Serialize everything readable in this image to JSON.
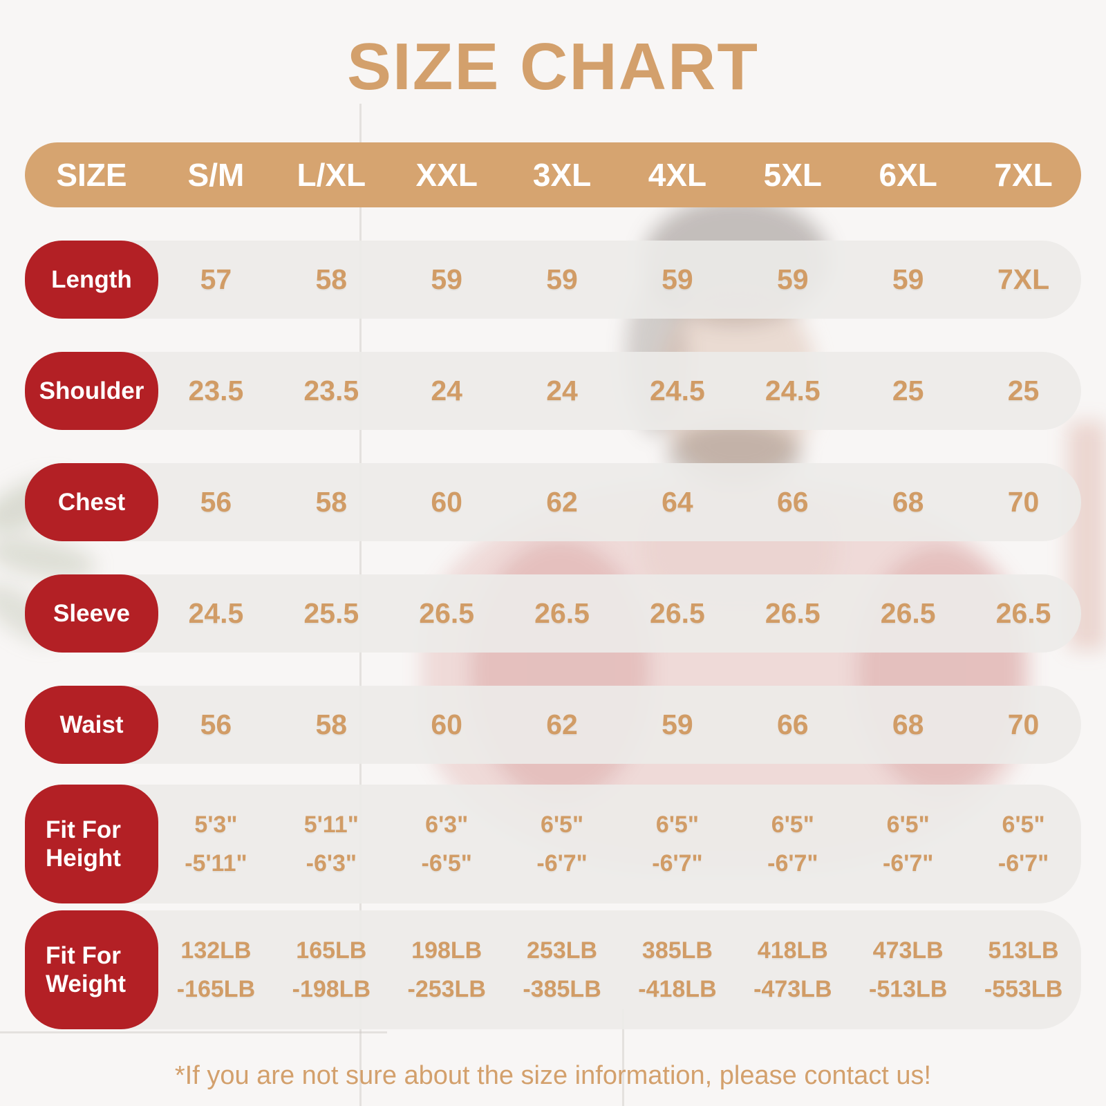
{
  "chart_data": {
    "type": "table",
    "title": "SIZE CHART",
    "columns": [
      "SIZE",
      "S/M",
      "L/XL",
      "XXL",
      "3XL",
      "4XL",
      "5XL",
      "6XL",
      "7XL"
    ],
    "rows": [
      {
        "label": "Length",
        "values": [
          "57",
          "58",
          "59",
          "59",
          "59",
          "59",
          "59",
          "7XL"
        ]
      },
      {
        "label": "Shoulder",
        "values": [
          "23.5",
          "23.5",
          "24",
          "24",
          "24.5",
          "24.5",
          "25",
          "25"
        ]
      },
      {
        "label": "Chest",
        "values": [
          "56",
          "58",
          "60",
          "62",
          "64",
          "66",
          "68",
          "70"
        ]
      },
      {
        "label": "Sleeve",
        "values": [
          "24.5",
          "25.5",
          "26.5",
          "26.5",
          "26.5",
          "26.5",
          "26.5",
          "26.5"
        ]
      },
      {
        "label": "Waist",
        "values": [
          "56",
          "58",
          "60",
          "62",
          "59",
          "66",
          "68",
          "70"
        ]
      },
      {
        "label": "Fit For Height",
        "values": [
          [
            "5'3\"",
            "-5'11\""
          ],
          [
            "5'11\"",
            "-6'3\""
          ],
          [
            "6'3\"",
            "-6'5\""
          ],
          [
            "6'5\"",
            "-6'7\""
          ],
          [
            "6'5\"",
            "-6'7\""
          ],
          [
            "6'5\"",
            "-6'7\""
          ],
          [
            "6'5\"",
            "-6'7\""
          ],
          [
            "6'5\"",
            "-6'7\""
          ]
        ]
      },
      {
        "label": "Fit For Weight",
        "values": [
          [
            "132LB",
            "-165LB"
          ],
          [
            "165LB",
            "-198LB"
          ],
          [
            "198LB",
            "-253LB"
          ],
          [
            "253LB",
            "-385LB"
          ],
          [
            "385LB",
            "-418LB"
          ],
          [
            "418LB",
            "-473LB"
          ],
          [
            "473LB",
            "-513LB"
          ],
          [
            "513LB",
            "-553LB"
          ]
        ]
      }
    ],
    "footnote": "*If you are not sure about the size information, please contact us!",
    "layout_hints": {
      "legend": "none",
      "grid": "off"
    }
  },
  "colors": {
    "accent_tan": "#d3a06c",
    "header_bar": "#d6a470",
    "label_pill_red": "#b32025",
    "row_band_gray": "#ecebea",
    "text_white": "#ffffff",
    "page_background": "#f8f6f5"
  }
}
